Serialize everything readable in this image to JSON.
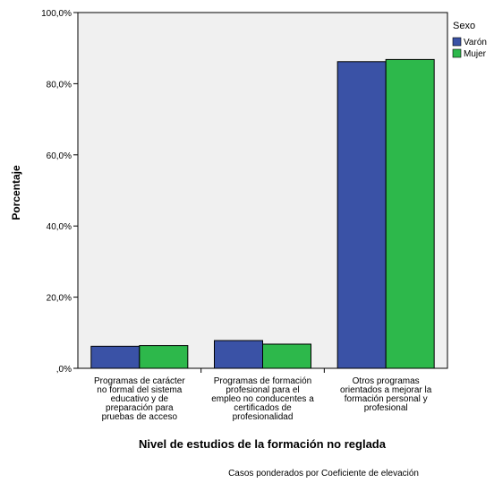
{
  "chart_data": {
    "type": "bar",
    "xlabel": "Nivel de estudios de la formación no reglada",
    "ylabel": "Porcentaje",
    "ylim": [
      0,
      100
    ],
    "yticks": [
      0,
      20,
      40,
      60,
      80,
      100
    ],
    "ytick_labels": [
      ",0%",
      "20,0%",
      "40,0%",
      "60,0%",
      "80,0%",
      "100,0%"
    ],
    "categories": [
      [
        "Programas de carácter",
        "no formal del sistema",
        "educativo y de",
        "preparación para",
        "pruebas de acceso"
      ],
      [
        "Programas de formación",
        "profesional para el",
        "empleo no conducentes a",
        "certificados de",
        "profesionalidad"
      ],
      [
        "Otros programas",
        "orientados a mejorar la",
        "formación personal y",
        "profesional"
      ]
    ],
    "series": [
      {
        "name": "Varón",
        "color": "#3a52a6",
        "values": [
          6.2,
          7.8,
          86.2
        ]
      },
      {
        "name": "Mujer",
        "color": "#2db84b",
        "values": [
          6.4,
          6.8,
          86.8
        ]
      }
    ],
    "legend": {
      "title": "Sexo",
      "placement": "top-right"
    },
    "grid": false,
    "background": "#f0f0f0",
    "footnote": "Casos ponderados por Coeficiente de elevación"
  }
}
